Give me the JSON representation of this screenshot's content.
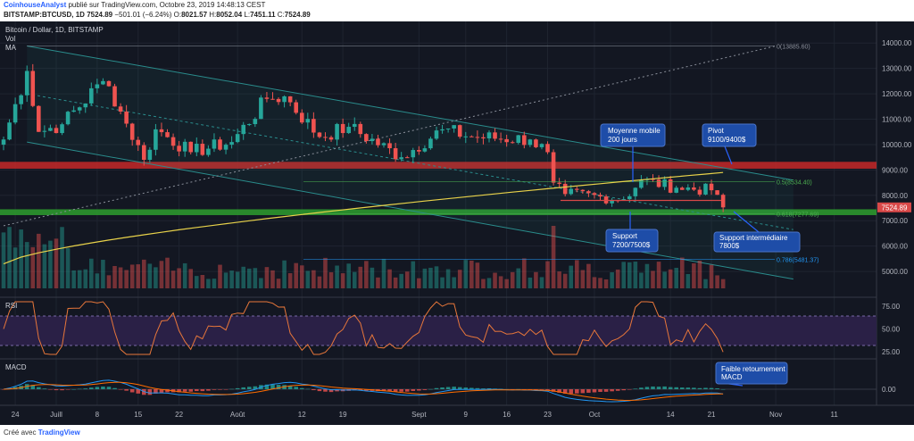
{
  "header": {
    "author": "CoinhouseAnalyst",
    "published": "publié sur TradingView.com, Octobre 23, 2019 14:48:13 CEST",
    "symbol": "BITSTAMP:BTCUSD, 1D",
    "price": "7524.89",
    "change": "−501.01 (−6.24%)",
    "o_label": "O:",
    "o": "8021.57",
    "h_label": "H:",
    "h": "8052.04",
    "l_label": "L:",
    "l": "7451.11",
    "c_label": "C:",
    "c": "7524.89"
  },
  "legend": {
    "title": "Bitcoin / Dollar, 1D, BITSTAMP",
    "vol": "Vol",
    "ma": "MA"
  },
  "footer": {
    "created": "Créé avec",
    "brand": "TradingView"
  },
  "colors": {
    "bg": "#131722",
    "up": "#26a69a",
    "down": "#ef5350",
    "resistance": "#c62828",
    "support": "#2e9e2e",
    "ma": "#e8d24a",
    "rsi": "#e8773a",
    "macd": "#2196f3",
    "signal": "#ff6d00",
    "callout": "#1e4da8"
  },
  "chart_data": [
    {
      "type": "candlestick",
      "title": "Bitcoin / Dollar, 1D, BITSTAMP",
      "x_ticks": [
        "24",
        "Juill",
        "8",
        "15",
        "22",
        "Août",
        "12",
        "19",
        "Sept",
        "9",
        "16",
        "23",
        "Oct",
        "14",
        "21",
        "Nov",
        "11"
      ],
      "y_ticks": [
        "14000.00",
        "13000.00",
        "12000.00",
        "11000.00",
        "10000.00",
        "9000.00",
        "8000.00",
        "7000.00",
        "6000.00",
        "5000.00"
      ],
      "ylim": [
        4300,
        14500
      ],
      "last_price": "7524.89",
      "fib_levels": [
        {
          "label": "0(13885.60)",
          "value": 13885.6
        },
        {
          "label": "0.5(8534.40)",
          "value": 8534.4
        },
        {
          "label": "0.618(7277.69)",
          "value": 7277.69
        },
        {
          "label": "0.786(5481.37)",
          "value": 5481.37
        }
      ],
      "zones": [
        {
          "name": "resistance",
          "from": 9050,
          "to": 9320
        },
        {
          "name": "support",
          "from": 7220,
          "to": 7450
        }
      ],
      "annotations": [
        {
          "text": [
            "Moyenne mobile",
            "200 jours"
          ]
        },
        {
          "text": [
            "Pivot",
            "9100/9400$"
          ]
        },
        {
          "text": [
            "Support",
            "7200/7500$"
          ]
        },
        {
          "text": [
            "Support intermédiaire",
            "7800$"
          ]
        }
      ],
      "anchors": [
        {
          "date": "2019-06-22",
          "close": 10200
        },
        {
          "date": "2019-06-26",
          "close": 12900
        },
        {
          "date": "2019-06-28",
          "close": 10500
        },
        {
          "date": "2019-07-02",
          "close": 10800
        },
        {
          "date": "2019-07-09",
          "close": 12500
        },
        {
          "date": "2019-07-10",
          "close": 12300
        },
        {
          "date": "2019-07-12",
          "close": 11300
        },
        {
          "date": "2019-07-16",
          "close": 9400
        },
        {
          "date": "2019-07-18",
          "close": 10600
        },
        {
          "date": "2019-07-24",
          "close": 9700
        },
        {
          "date": "2019-07-31",
          "close": 10100
        },
        {
          "date": "2019-08-06",
          "close": 11800
        },
        {
          "date": "2019-08-09",
          "close": 11900
        },
        {
          "date": "2019-08-15",
          "close": 10300
        },
        {
          "date": "2019-08-20",
          "close": 10700
        },
        {
          "date": "2019-08-29",
          "close": 9500
        },
        {
          "date": "2019-09-05",
          "close": 10600
        },
        {
          "date": "2019-09-10",
          "close": 10300
        },
        {
          "date": "2019-09-20",
          "close": 10200
        },
        {
          "date": "2019-09-23",
          "close": 9700
        },
        {
          "date": "2019-09-24",
          "close": 8500
        },
        {
          "date": "2019-09-26",
          "close": 8050
        },
        {
          "date": "2019-10-06",
          "close": 7850
        },
        {
          "date": "2019-10-09",
          "close": 8600
        },
        {
          "date": "2019-10-15",
          "close": 8300
        },
        {
          "date": "2019-10-21",
          "close": 8200
        },
        {
          "date": "2019-10-22",
          "close": 8021
        },
        {
          "date": "2019-10-23",
          "close": 7525
        }
      ],
      "ma200_label": "Moyenne mobile 200 jours"
    },
    {
      "type": "line",
      "title": "RSI",
      "y_ticks": [
        "75.00",
        "50.00",
        "25.00"
      ],
      "ylim": [
        20,
        82
      ],
      "band": [
        30,
        70
      ]
    },
    {
      "type": "histogram",
      "title": "MACD",
      "y_ticks": [
        "0.00"
      ],
      "annotations": [
        {
          "text": [
            "Faible retournement",
            "MACD"
          ]
        }
      ]
    }
  ]
}
